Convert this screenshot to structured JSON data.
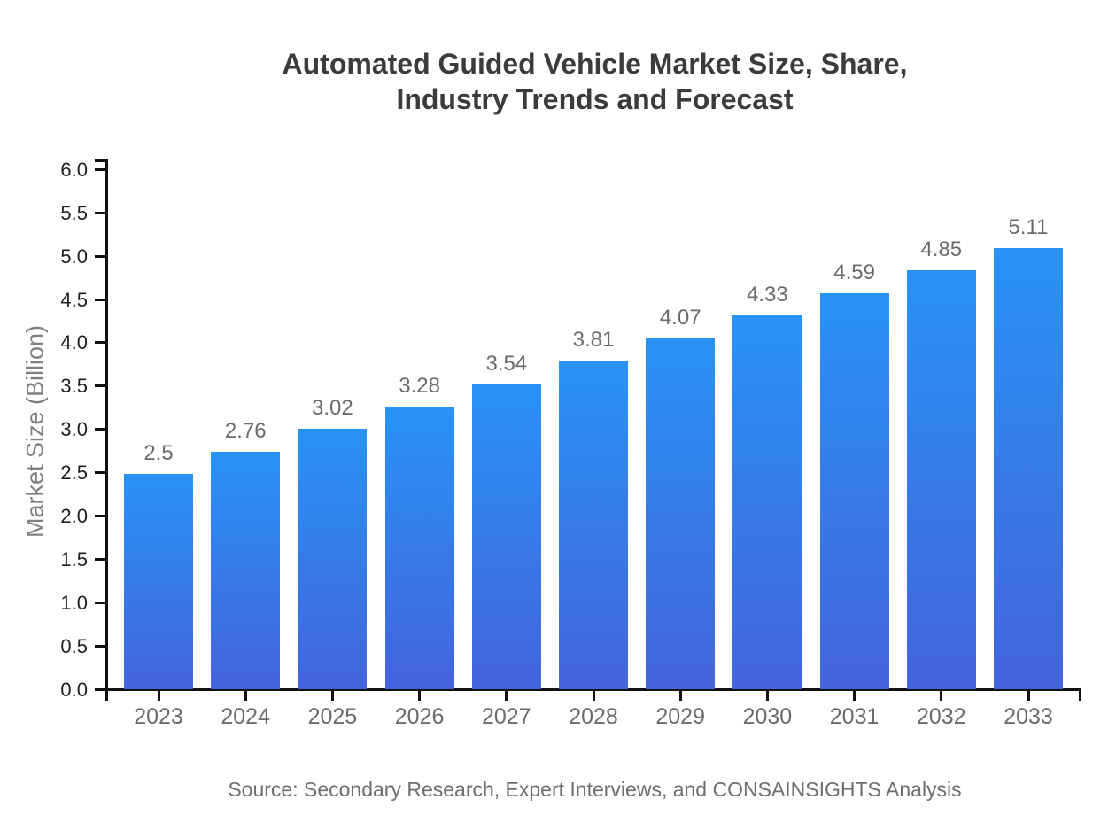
{
  "title": {
    "line1": "Automated Guided Vehicle Market Size, Share,",
    "line2": "Industry Trends and Forecast"
  },
  "axes": {
    "y_title": "Market Size (Billion)"
  },
  "source": "Source: Secondary Research, Expert Interviews, and CONSAINSIGHTS Analysis",
  "colors": {
    "bar_gradient_top": "#2893f5",
    "bar_gradient_bottom": "#4464db",
    "axis": "#111111",
    "title_text": "#3b3b3b",
    "value_label_text": "#6b6b6b",
    "x_tick_label_text": "#6b6b6b",
    "y_tick_label_text": "#1f1f1f",
    "y_axis_title_text": "#808080",
    "source_text": "#6e6e6e",
    "background": "#ffffff"
  },
  "chart_data": {
    "type": "bar",
    "title": "Automated Guided Vehicle Market Size, Share, Industry Trends and Forecast",
    "xlabel": "",
    "ylabel": "Market Size (Billion)",
    "categories": [
      "2023",
      "2024",
      "2025",
      "2026",
      "2027",
      "2028",
      "2029",
      "2030",
      "2031",
      "2032",
      "2033"
    ],
    "values": [
      2.5,
      2.76,
      3.02,
      3.28,
      3.54,
      3.81,
      4.07,
      4.33,
      4.59,
      4.85,
      5.11
    ],
    "value_labels": [
      "2.5",
      "2.76",
      "3.02",
      "3.28",
      "3.54",
      "3.81",
      "4.07",
      "4.33",
      "4.59",
      "4.85",
      "5.11"
    ],
    "ylim": [
      0,
      6.13
    ],
    "ytick_labels": [
      "0.0",
      "0.5",
      "1.0",
      "1.5",
      "2.0",
      "2.5",
      "3.0",
      "3.5",
      "4.0",
      "4.5",
      "5.0",
      "5.5",
      "6.0"
    ],
    "grid": false,
    "legend": null,
    "source": "Source: Secondary Research, Expert Interviews, and CONSAINSIGHTS Analysis"
  }
}
